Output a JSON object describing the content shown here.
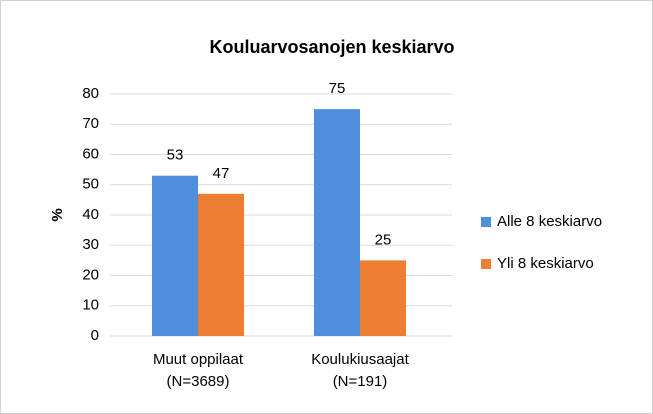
{
  "chart_data": {
    "type": "bar",
    "title": "Kouluarvosanojen keskiarvo",
    "ylabel": "%",
    "categories": [
      [
        "Muut oppilaat",
        "(N=3689)"
      ],
      [
        "Koulukiusaajat",
        "(N=191)"
      ]
    ],
    "series": [
      {
        "name": "Alle 8 keskiarvo",
        "color": "#4f8fdc",
        "values": [
          53,
          75
        ]
      },
      {
        "name": "Yli 8 keskiarvo",
        "color": "#ed7d31",
        "values": [
          47,
          25
        ]
      }
    ],
    "ylim": [
      0,
      80
    ],
    "yticks": [
      0,
      10,
      20,
      30,
      40,
      50,
      60,
      70,
      80
    ],
    "grid": true,
    "legend": "right"
  }
}
